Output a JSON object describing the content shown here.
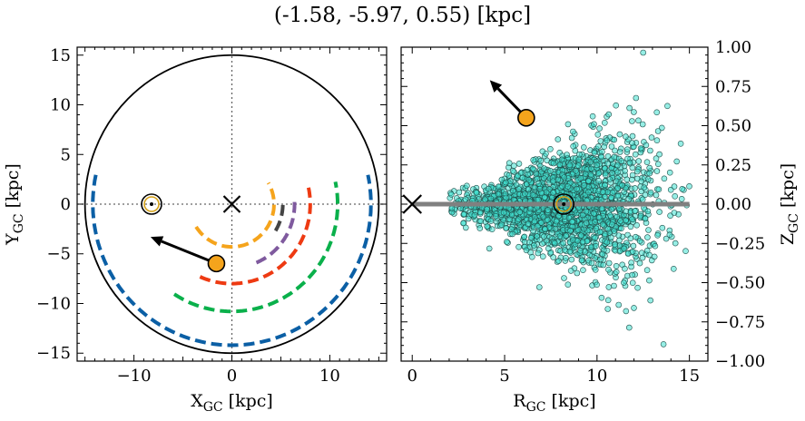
{
  "title": "(-1.58, -5.97, 0.55) [kpc]",
  "colors": {
    "arc_outer": "#0b5fa5",
    "arc_green": "#0ab04b",
    "arc_red": "#ee3a12",
    "arc_purple": "#7f5a9e",
    "arc_dark": "#444444",
    "arc_orange": "#f5a41c",
    "marker": "#f5a41c",
    "scatter": "#40e0d0",
    "plane_line": "#808080"
  },
  "chart_data": [
    {
      "type": "scatter",
      "panel": "left",
      "xlabel": "X",
      "xlabel_sub": "GC",
      "xlabel_unit": " [kpc]",
      "ylabel": "Y",
      "ylabel_sub": "GC",
      "ylabel_unit": " [kpc]",
      "xlim": [
        -15.8,
        15.8
      ],
      "ylim": [
        -15.8,
        15.8
      ],
      "xticks": [
        -10,
        0,
        10
      ],
      "xtick_labels": [
        "−10",
        "0",
        "10"
      ],
      "yticks": [
        15,
        10,
        5,
        0,
        -5,
        -10,
        -15
      ],
      "ytick_labels": [
        "15",
        "10",
        "5",
        "0",
        "−5",
        "−10",
        "−15"
      ],
      "boundary_radius": 15,
      "crosshair": [
        0,
        0
      ],
      "galactic_center": [
        0,
        0
      ],
      "sun": [
        -8.2,
        0
      ],
      "object": [
        -1.58,
        -5.97
      ],
      "velocity_arrow_to": [
        -8.3,
        -3.3
      ],
      "arcs": [
        {
          "color_key": "arc_outer",
          "radius": 14.2,
          "start_deg": 168,
          "end_deg": 12
        },
        {
          "color_key": "arc_green",
          "radius": 10.8,
          "start_deg": 237,
          "end_deg": 12
        },
        {
          "color_key": "arc_red",
          "radius": 8.0,
          "start_deg": 246,
          "end_deg": 12
        },
        {
          "color_key": "arc_purple",
          "radius": 6.4,
          "start_deg": 293,
          "end_deg": 5
        },
        {
          "color_key": "arc_dark",
          "radius": 5.2,
          "start_deg": 329,
          "end_deg": 0
        },
        {
          "color_key": "arc_orange",
          "radius": 4.3,
          "start_deg": 212,
          "end_deg": 30
        }
      ]
    },
    {
      "type": "scatter",
      "panel": "right",
      "xlabel": "R",
      "xlabel_sub": "GC",
      "xlabel_unit": " [kpc]",
      "ylabel": "Z",
      "ylabel_sub": "GC",
      "ylabel_unit": " [kpc]",
      "xlim": [
        -0.6,
        16.0
      ],
      "ylim": [
        -1.0,
        1.0
      ],
      "xticks": [
        0,
        5,
        10,
        15
      ],
      "xtick_labels": [
        "0",
        "5",
        "10",
        "15"
      ],
      "yticks": [
        1.0,
        0.75,
        0.5,
        0.25,
        0.0,
        -0.25,
        -0.5,
        -0.75,
        -1.0
      ],
      "ytick_labels": [
        "1.00",
        "0.75",
        "0.50",
        "0.25",
        "0.00",
        "−0.25",
        "−0.50",
        "−0.75",
        "−1.00"
      ],
      "galactic_center": [
        0,
        0
      ],
      "sun": [
        8.2,
        0.0
      ],
      "plane_line": [
        0,
        15
      ],
      "object": [
        6.17,
        0.55
      ],
      "velocity_arrow_to": [
        4.2,
        0.79
      ],
      "cloud_center": [
        8.2,
        0.0
      ],
      "cloud_sigma_x": 2.6,
      "cloud_sigma_z": 0.18,
      "cloud_n_points": 2200,
      "cloud_x_range": [
        2.0,
        15.3
      ],
      "cloud_z_range": [
        -1.0,
        0.97
      ]
    }
  ]
}
